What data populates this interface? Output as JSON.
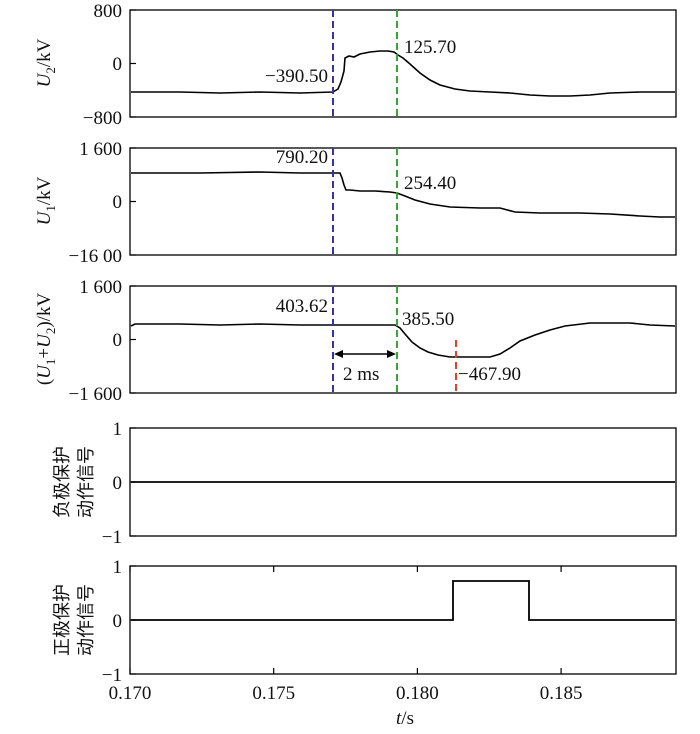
{
  "chart_data": [
    {
      "type": "line",
      "ylabel": "U₂/kV",
      "ylim": [
        -800,
        800
      ],
      "yticks": [
        "800",
        "0",
        "−800"
      ],
      "series": [
        {
          "x": [
            0.17,
            0.1735,
            0.1771,
            0.1774,
            0.1775,
            0.1779,
            0.1786,
            0.179,
            0.1794,
            0.1799,
            0.1803,
            0.1811,
            0.1823,
            0.185,
            0.1856,
            0.187,
            0.189
          ],
          "y": [
            -390.5,
            -390.5,
            -390.5,
            -300,
            120,
            140,
            190,
            200,
            125.7,
            40,
            -100,
            -230,
            -350,
            -410,
            -420,
            -400,
            -390
          ]
        }
      ],
      "annotations": [
        "−390.50",
        "125.70"
      ]
    },
    {
      "type": "line",
      "ylabel": "U₁/kV",
      "ylim": [
        -1600,
        1600
      ],
      "yticks": [
        "1 600",
        "0",
        "−16 00"
      ],
      "series": [
        {
          "x": [
            0.17,
            0.1771,
            0.1773,
            0.1774,
            0.1776,
            0.1782,
            0.1786,
            0.179,
            0.1794,
            0.1799,
            0.1806,
            0.1814,
            0.182,
            0.1834,
            0.185,
            0.187,
            0.189
          ],
          "y": [
            790.2,
            790.2,
            780,
            500,
            350,
            320,
            300,
            270,
            254.4,
            120,
            -50,
            -130,
            -200,
            -300,
            -330,
            -400,
            -450
          ]
        }
      ],
      "annotations": [
        "790.20",
        "254.40"
      ]
    },
    {
      "type": "line",
      "ylabel": "(U₁+U₂)/kV",
      "ylim": [
        -1600,
        1600
      ],
      "yticks": [
        "1 600",
        "0",
        "−1 600"
      ],
      "series": [
        {
          "x": [
            0.17,
            0.178,
            0.179,
            0.1794,
            0.18,
            0.1805,
            0.1811,
            0.1823,
            0.183,
            0.184,
            0.185,
            0.186,
            0.187,
            0.189
          ],
          "y": [
            403.6,
            403.6,
            403.6,
            385.5,
            -50,
            -400,
            -467.9,
            -467.9,
            -250,
            150,
            430,
            500,
            500,
            400
          ]
        }
      ],
      "annotations": [
        "403.62",
        "385.50",
        "−467.90",
        "2 ms"
      ]
    },
    {
      "type": "line",
      "ylabel_lines": [
        "负极保护",
        "动作信号"
      ],
      "ylim": [
        -1,
        1
      ],
      "yticks": [
        "1",
        "0",
        "−1"
      ],
      "series": [
        {
          "x": [
            0.17,
            0.189
          ],
          "y": [
            0,
            0
          ]
        }
      ]
    },
    {
      "type": "line",
      "ylabel_lines": [
        "正极保护",
        "动作信号"
      ],
      "ylim": [
        -1,
        1
      ],
      "yticks": [
        "1",
        "0",
        "−1"
      ],
      "series": [
        {
          "x": [
            0.17,
            0.1812,
            0.1812,
            0.1824,
            0.1824,
            0.189
          ],
          "y": [
            0,
            0,
            0.75,
            0.75,
            0,
            0
          ]
        }
      ],
      "xticks": [
        "0.170",
        "0.175",
        "0.180",
        "0.185"
      ],
      "xlabel": "t/s"
    }
  ],
  "colors": {
    "blue_marker": "#3333aa",
    "green_marker": "#33a833",
    "red_marker": "#e0402a",
    "trace": "#000000"
  }
}
